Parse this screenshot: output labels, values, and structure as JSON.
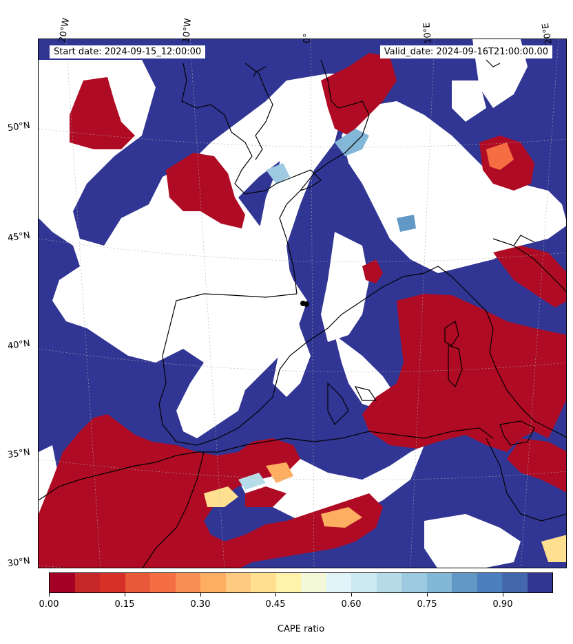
{
  "header": {
    "start_date": "Start date: 2024-09-15_12:00:00",
    "valid_date": "Valid_date: 2024-09-16T21:00:00.00"
  },
  "axes": {
    "lon_labels": [
      "20°W",
      "10°W",
      "0°",
      "10°E",
      "20°E"
    ],
    "lat_labels": [
      "50°N",
      "45°N",
      "40°N",
      "35°N",
      "30°N"
    ]
  },
  "colorbar": {
    "label": "CAPE ratio",
    "tick_labels": [
      "0.00",
      "0.15",
      "0.30",
      "0.45",
      "0.60",
      "0.75",
      "0.90"
    ],
    "colors": [
      "#a50026",
      "#c62828",
      "#d73027",
      "#e8593a",
      "#f46d43",
      "#f98e52",
      "#fdae61",
      "#fec980",
      "#fee090",
      "#fff3ac",
      "#f3f9d8",
      "#e0f3f8",
      "#cde9f2",
      "#b6dcea",
      "#9ecae1",
      "#83b7d8",
      "#6198c5",
      "#4c7fbd",
      "#4466ad",
      "#313695"
    ],
    "range": [
      0.0,
      1.0
    ]
  },
  "map_colors": {
    "high_ratio": "#313695",
    "low_ratio": "#b00b24",
    "no_data": "#ffffff",
    "coast": "#000000"
  }
}
